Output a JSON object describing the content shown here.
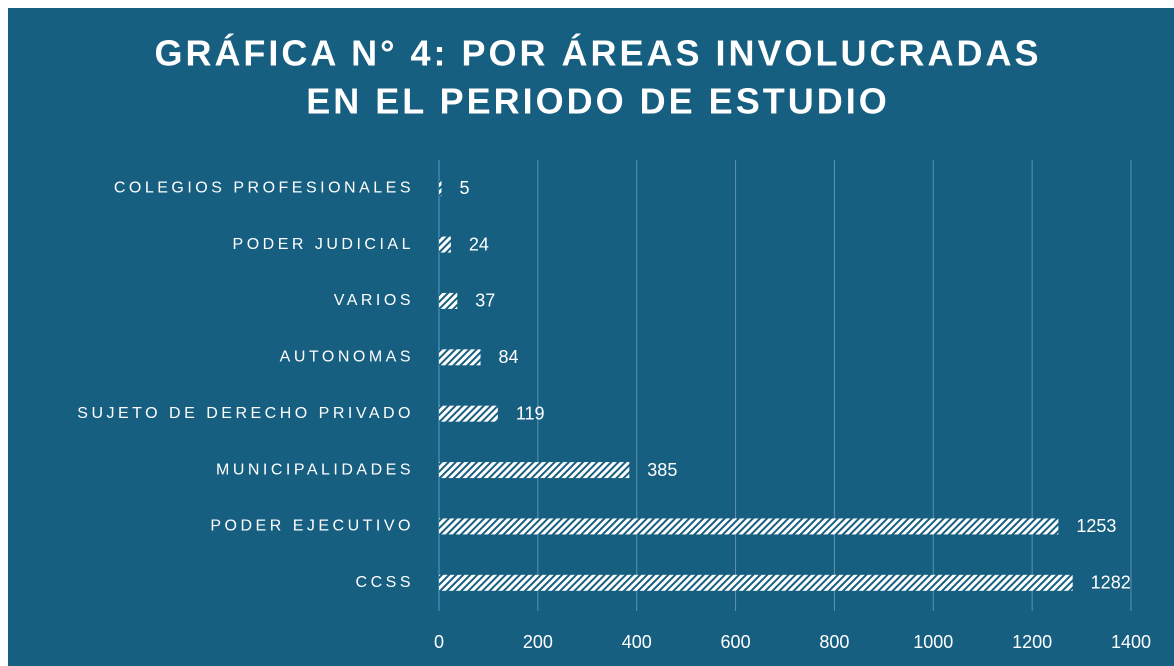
{
  "chart_data": {
    "type": "bar",
    "orientation": "horizontal",
    "title": [
      "GRÁFICA N° 4: POR ÁREAS INVOLUCRADAS",
      "EN EL PERIODO DE ESTUDIO"
    ],
    "categories": [
      "COLEGIOS PROFESIONALES",
      "PODER JUDICIAL",
      "VARIOS",
      "AUTONOMAS",
      "SUJETO DE DERECHO PRIVADO",
      "MUNICIPALIDADES",
      "PODER EJECUTIVO",
      "CCSS"
    ],
    "values": [
      5,
      24,
      37,
      84,
      119,
      385,
      1253,
      1282
    ],
    "color": "#ffffff",
    "background": "#175f80",
    "xlim": [
      0,
      1400
    ],
    "xticks": [
      0,
      200,
      400,
      600,
      800,
      1000,
      1200,
      1400
    ],
    "grid": true
  }
}
